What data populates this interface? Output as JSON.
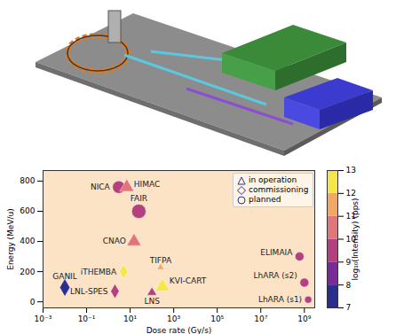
{
  "chart_data": {
    "type": "scatter",
    "xlabel": "Dose rate (Gy/s)",
    "ylabel": "Energy (MeV/u)",
    "log": "x",
    "xlim": [
      0.001,
      3000000000
    ],
    "xticks": [
      {
        "value": 0.001,
        "label": "10⁻³"
      },
      {
        "value": 0.1,
        "label": "10⁻¹"
      },
      {
        "value": 10,
        "label": "10¹"
      },
      {
        "value": 1000,
        "label": "10³"
      },
      {
        "value": 100000,
        "label": "10⁵"
      },
      {
        "value": 10000000,
        "label": "10⁷"
      },
      {
        "value": 1000000000,
        "label": "10⁹"
      }
    ],
    "ylim": [
      -40,
      870
    ],
    "yticks": [
      0,
      200,
      400,
      600,
      800
    ],
    "legend": "top-right",
    "colorbar": {
      "label": "log₁₀(Intensity) (pps)",
      "range": [
        7,
        13
      ],
      "ticks": [
        7,
        8,
        9,
        10,
        11,
        12,
        13
      ]
    },
    "series": [
      {
        "name": "in operation",
        "marker": "triangle",
        "labels": [
          "HIMAC",
          "CNAO",
          "TIFPA",
          "KVI-CART",
          "LNS"
        ],
        "x": [
          7,
          15,
          250,
          300,
          100
        ],
        "values": [
          760,
          400,
          228,
          100,
          62
        ],
        "intensity": [
          10.5,
          10.5,
          11.5,
          12.5,
          9.5
        ],
        "sizes": [
          6,
          6,
          3,
          6,
          4
        ]
      },
      {
        "name": "commissioning",
        "marker": "diamond",
        "labels": [
          "iTHEMBA",
          "LNL-SPES",
          "GANIL"
        ],
        "x": [
          5,
          2,
          0.01
        ],
        "values": [
          200,
          70,
          95
        ],
        "intensity": [
          12.5,
          9.5,
          7.5
        ],
        "sizes": [
          5,
          5,
          6
        ]
      },
      {
        "name": "planned",
        "marker": "circle",
        "labels": [
          "NICA",
          "FAIR",
          "ELIMAIA",
          "LhARA (s2)",
          "LhARA (s1)"
        ],
        "x": [
          3,
          25,
          600000000,
          1000000000,
          1500000000
        ],
        "values": [
          760,
          600,
          300,
          127,
          15
        ],
        "intensity": [
          9.5,
          9.5,
          9.5,
          9.5,
          9.5
        ],
        "sizes": [
          7,
          8,
          5,
          5,
          4
        ]
      }
    ]
  }
}
